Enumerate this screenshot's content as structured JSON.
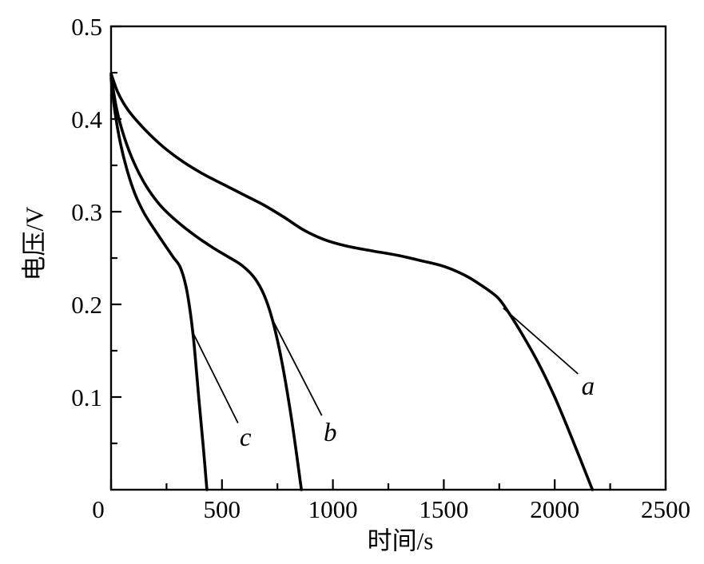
{
  "figure": {
    "background_color": "#ffffff",
    "line_color": "#000000",
    "text_color": "#000000"
  },
  "chart_data": {
    "type": "line",
    "title": "",
    "xlabel": "时间/s",
    "ylabel": "电压/V",
    "xlim": [
      0,
      2500
    ],
    "ylim": [
      0,
      0.5
    ],
    "grid": false,
    "legend_position": "none",
    "frame": "closed-box",
    "x_ticks": {
      "major": [
        0,
        500,
        1000,
        1500,
        2000,
        2500
      ],
      "minor": [
        250,
        750,
        1250,
        1750,
        2250
      ],
      "labels": [
        "0",
        "500",
        "1000",
        "1500",
        "2000",
        "2500"
      ]
    },
    "y_ticks": {
      "major": [
        0.1,
        0.2,
        0.3,
        0.4,
        0.5
      ],
      "minor": [
        0.05,
        0.15,
        0.25,
        0.35,
        0.45
      ],
      "labels": [
        "0.1",
        "0.2",
        "0.3",
        "0.4",
        "0.5"
      ]
    },
    "series": [
      {
        "name": "a",
        "x": [
          0,
          30,
          70,
          120,
          180,
          250,
          330,
          420,
          510,
          600,
          690,
          780,
          870,
          960,
          1060,
          1170,
          1290,
          1400,
          1500,
          1590,
          1660,
          1740,
          1790,
          1860,
          1930,
          2000,
          2070,
          2170
        ],
        "y": [
          0.449,
          0.429,
          0.412,
          0.397,
          0.382,
          0.367,
          0.353,
          0.34,
          0.329,
          0.318,
          0.307,
          0.294,
          0.28,
          0.27,
          0.263,
          0.258,
          0.253,
          0.247,
          0.241,
          0.232,
          0.222,
          0.208,
          0.192,
          0.165,
          0.135,
          0.1,
          0.06,
          0.0
        ]
      },
      {
        "name": "b",
        "x": [
          0,
          25,
          60,
          105,
          160,
          225,
          300,
          380,
          460,
          530,
          590,
          645,
          690,
          730,
          770,
          815,
          858
        ],
        "y": [
          0.447,
          0.411,
          0.38,
          0.352,
          0.327,
          0.306,
          0.289,
          0.274,
          0.261,
          0.251,
          0.242,
          0.229,
          0.21,
          0.181,
          0.138,
          0.074,
          0.0
        ]
      },
      {
        "name": "c",
        "x": [
          0,
          18,
          42,
          72,
          108,
          150,
          195,
          240,
          280,
          312,
          338,
          358,
          375,
          395,
          415,
          432
        ],
        "y": [
          0.444,
          0.407,
          0.374,
          0.345,
          0.319,
          0.298,
          0.281,
          0.265,
          0.251,
          0.24,
          0.219,
          0.19,
          0.155,
          0.1,
          0.048,
          0.0
        ]
      }
    ],
    "annotations": [
      {
        "label": "a",
        "line_from": [
          1768,
          0.196
        ],
        "line_to": [
          2105,
          0.125
        ],
        "label_at": [
          2150,
          0.112
        ]
      },
      {
        "label": "b",
        "line_from": [
          718,
          0.188
        ],
        "line_to": [
          950,
          0.08
        ],
        "label_at": [
          988,
          0.062
        ]
      },
      {
        "label": "c",
        "line_from": [
          368,
          0.17
        ],
        "line_to": [
          572,
          0.072
        ],
        "label_at": [
          606,
          0.057
        ]
      }
    ]
  }
}
